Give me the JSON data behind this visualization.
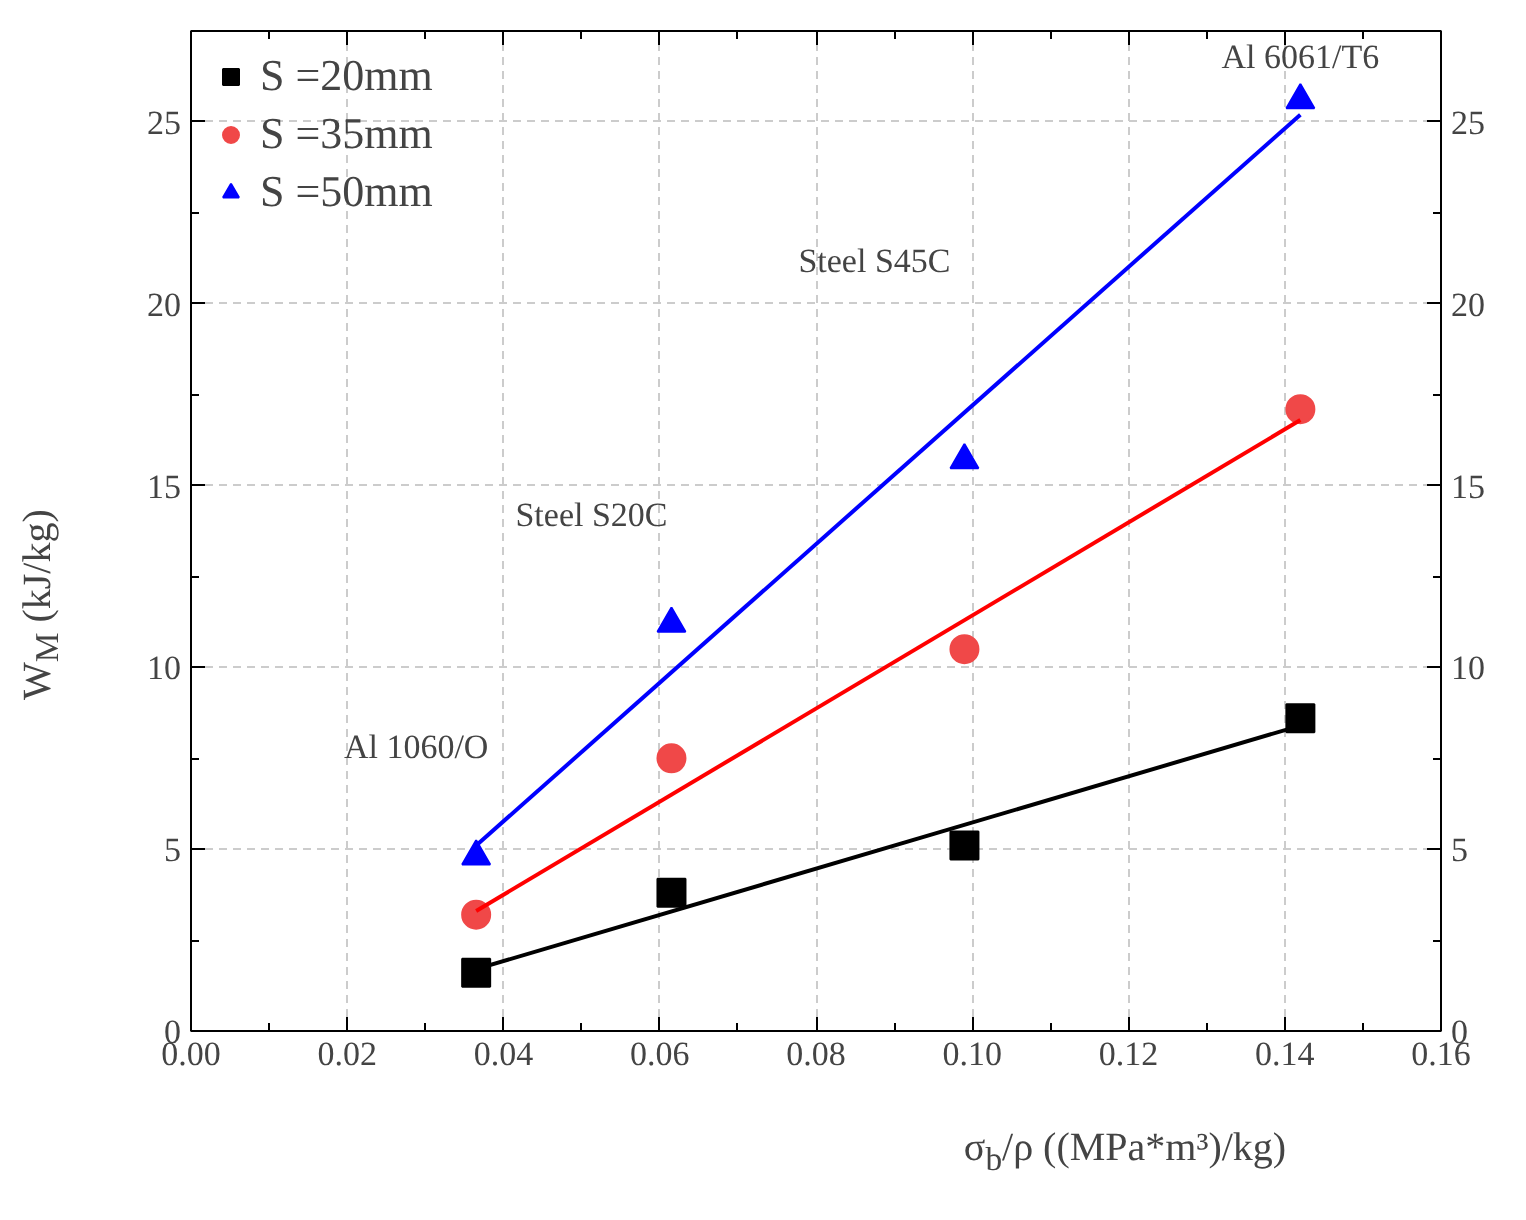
{
  "chart_data": {
    "type": "scatter",
    "xlabel": "σ$_{b}$/ρ ((MPa*m³)/kg)",
    "ylabel": "W$_{M}$ (kJ/kg)",
    "xlim": [
      0,
      0.16
    ],
    "xticks": [
      {
        "value": 0,
        "label": "0.00"
      },
      {
        "value": 0.02,
        "label": "0.02"
      },
      {
        "value": 0.04,
        "label": "0.04"
      },
      {
        "value": 0.06,
        "label": "0.06"
      },
      {
        "value": 0.08,
        "label": "0.08"
      },
      {
        "value": 0.1,
        "label": "0.10"
      },
      {
        "value": 0.12,
        "label": "0.12"
      },
      {
        "value": 0.14,
        "label": "0.14"
      },
      {
        "value": 0.16,
        "label": "0.16"
      }
    ],
    "ylim": [
      0,
      27.5
    ],
    "yticks": [
      0,
      5,
      10,
      15,
      20,
      25
    ],
    "y2lim": [
      0,
      27.5
    ],
    "y2ticks": [
      0,
      5,
      10,
      15,
      20,
      25
    ],
    "grid": true,
    "legend": "top left",
    "series": [
      {
        "name": "S =20mm",
        "color": "#000000",
        "marker": "square",
        "x": [
          0.0365,
          0.0615,
          0.099,
          0.142
        ],
        "values": [
          1.6,
          3.8,
          5.1,
          8.6
        ]
      },
      {
        "name": "S =35mm",
        "color": "#f04848",
        "marker": "circle",
        "x": [
          0.0365,
          0.0615,
          0.099,
          0.142
        ],
        "values": [
          3.2,
          7.5,
          10.5,
          17.1
        ]
      },
      {
        "name": "S =50mm",
        "color": "#0000ff",
        "marker": "triangle",
        "x": [
          0.0365,
          0.0615,
          0.099,
          0.142
        ],
        "values": [
          4.8,
          11.2,
          15.7,
          25.6
        ]
      },
      {
        "type": "line",
        "color": "#000000",
        "x": [
          0.0365,
          0.142
        ],
        "values": [
          1.7,
          8.4
        ]
      },
      {
        "type": "line",
        "color": "#ff0000",
        "x": [
          0.0365,
          0.142
        ],
        "values": [
          3.3,
          16.8
        ]
      },
      {
        "type": "line",
        "color": "#0000ff",
        "x": [
          0.0365,
          0.142
        ],
        "values": [
          5.1,
          25.2
        ]
      }
    ],
    "annotations": [
      "Al 1060/O",
      "Steel S20C",
      "Steel S45C",
      "Al 6061/T6"
    ]
  }
}
